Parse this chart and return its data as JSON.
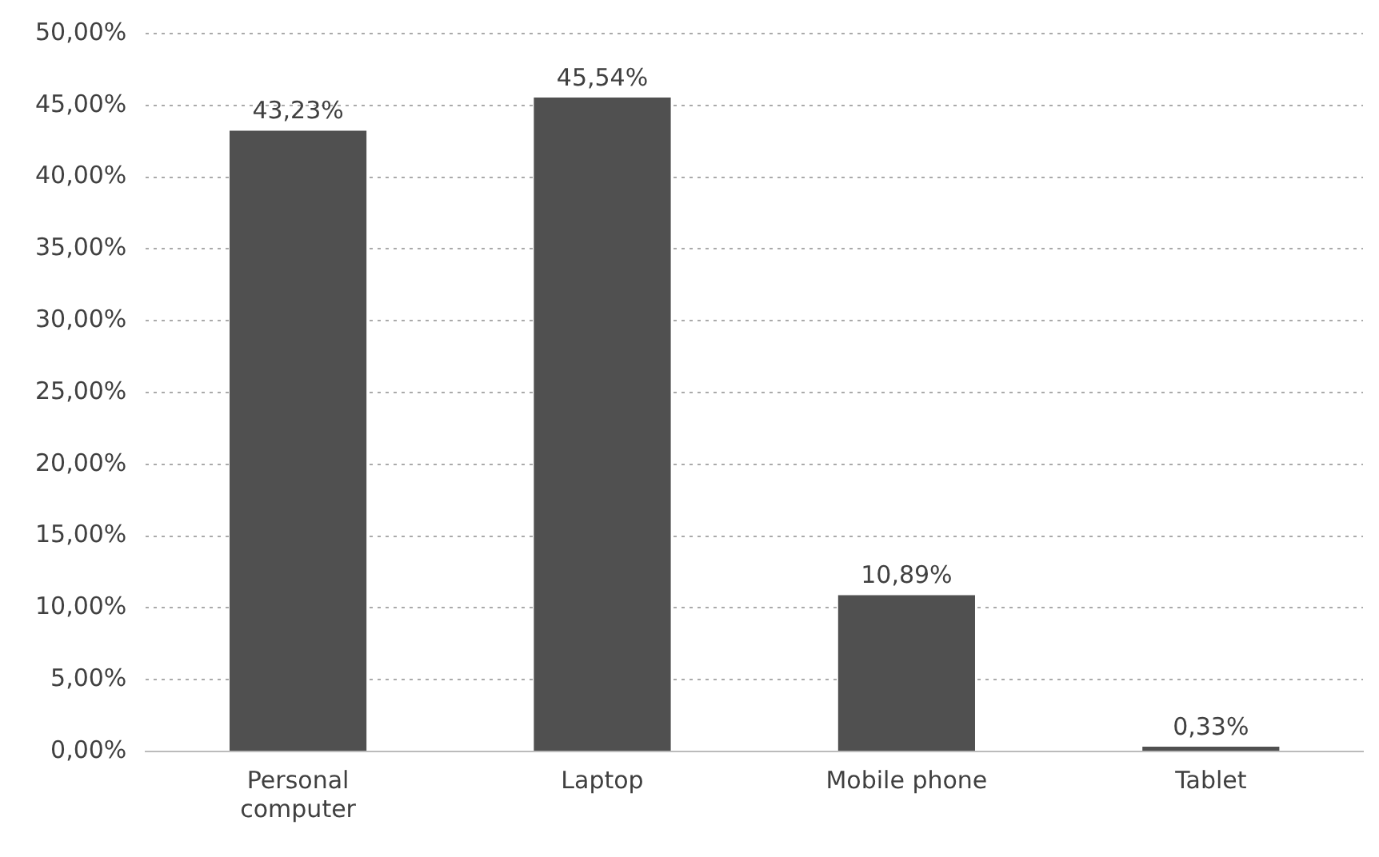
{
  "chart_data": {
    "type": "bar",
    "categories": [
      "Personal computer",
      "Laptop",
      "Mobile phone",
      "Tablet"
    ],
    "values": [
      43.23,
      45.54,
      10.89,
      0.33
    ],
    "value_labels": [
      "43,23%",
      "45,54%",
      "10,89%",
      "0,33%"
    ],
    "color": "#505050",
    "ylim": [
      0,
      50
    ],
    "yticks": [
      {
        "value": 0,
        "label": "0,00%"
      },
      {
        "value": 5,
        "label": "5,00%"
      },
      {
        "value": 10,
        "label": "10,00%"
      },
      {
        "value": 15,
        "label": "15,00%"
      },
      {
        "value": 20,
        "label": "20,00%"
      },
      {
        "value": 25,
        "label": "25,00%"
      },
      {
        "value": 30,
        "label": "30,00%"
      },
      {
        "value": 35,
        "label": "35,00%"
      },
      {
        "value": 40,
        "label": "40,00%"
      },
      {
        "value": 45,
        "label": "45,00%"
      },
      {
        "value": 50,
        "label": "50,00%"
      }
    ],
    "grid": "y",
    "legend": false
  }
}
